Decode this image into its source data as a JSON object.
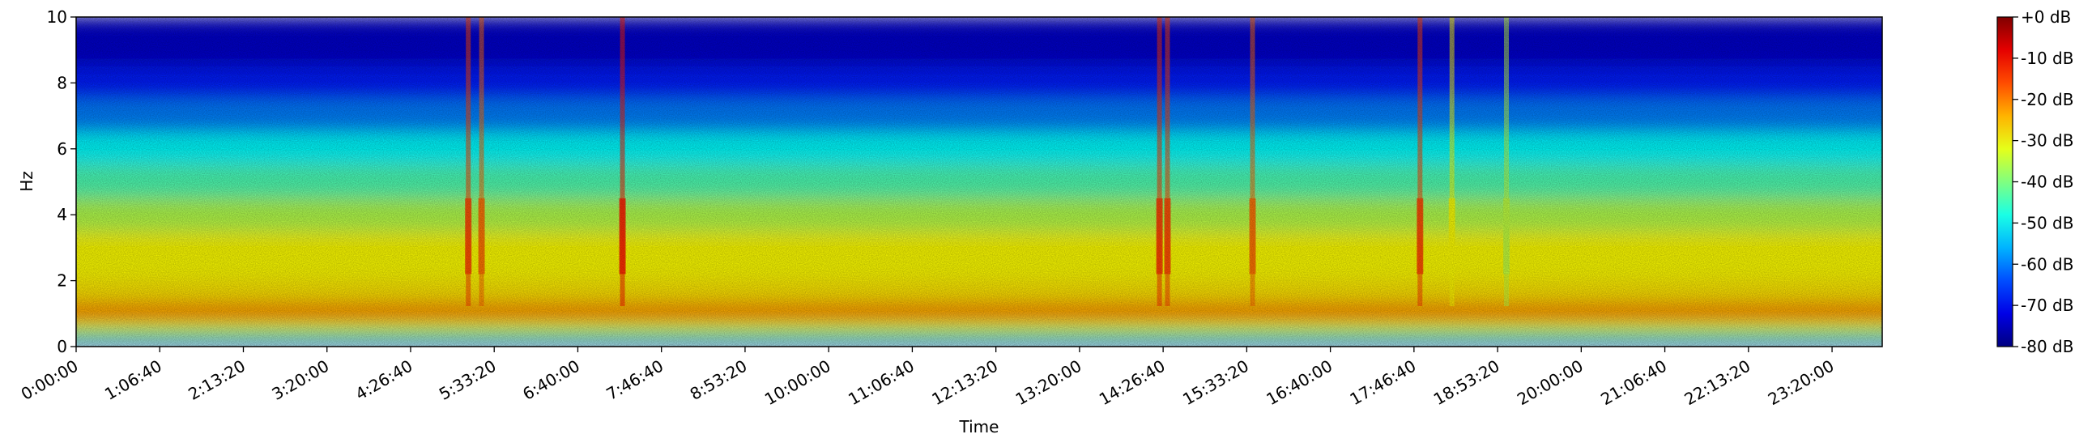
{
  "chart_data": {
    "type": "spectrogram",
    "x_label": "Time",
    "y_label": "Hz",
    "xlim": [
      0,
      86400
    ],
    "ylim": [
      0,
      10
    ],
    "xticks": [
      {
        "value": 0,
        "label": "0:00:00"
      },
      {
        "value": 4000,
        "label": "1:06:40"
      },
      {
        "value": 8000,
        "label": "2:13:20"
      },
      {
        "value": 12000,
        "label": "3:20:00"
      },
      {
        "value": 16000,
        "label": "4:26:40"
      },
      {
        "value": 20000,
        "label": "5:33:20"
      },
      {
        "value": 24000,
        "label": "6:40:00"
      },
      {
        "value": 28000,
        "label": "7:46:40"
      },
      {
        "value": 32000,
        "label": "8:53:20"
      },
      {
        "value": 36000,
        "label": "10:00:00"
      },
      {
        "value": 40000,
        "label": "11:06:40"
      },
      {
        "value": 44000,
        "label": "12:13:20"
      },
      {
        "value": 48000,
        "label": "13:20:00"
      },
      {
        "value": 52000,
        "label": "14:26:40"
      },
      {
        "value": 56000,
        "label": "15:33:20"
      },
      {
        "value": 60000,
        "label": "16:40:00"
      },
      {
        "value": 64000,
        "label": "17:46:40"
      },
      {
        "value": 68000,
        "label": "18:53:20"
      },
      {
        "value": 72000,
        "label": "20:00:00"
      },
      {
        "value": 76000,
        "label": "21:06:40"
      },
      {
        "value": 80000,
        "label": "22:13:20"
      },
      {
        "value": 84000,
        "label": "23:20:00"
      }
    ],
    "yticks": [
      0,
      2,
      4,
      6,
      8,
      10
    ],
    "profile": {
      "bins": [
        0,
        0.2,
        0.5,
        0.8,
        1.3,
        2,
        3.5,
        4.5,
        5.5,
        6.5,
        7.5,
        8.5,
        10
      ],
      "values": [
        -62,
        -42,
        -30,
        -20,
        -28,
        -30,
        -36,
        -44,
        -50,
        -60,
        -68,
        -74
      ]
    },
    "events": {
      "times": [
        18760,
        19394,
        26135,
        51825,
        52207,
        56277,
        64289,
        65816,
        68422
      ],
      "values": [
        -15,
        -18,
        -12,
        -14,
        -15,
        -18,
        -15,
        -30,
        -35
      ]
    },
    "colormap": "jet",
    "clim": [
      -80,
      0
    ],
    "cticks": [
      {
        "value": 0,
        "label": "+0 dB"
      },
      {
        "value": -10,
        "label": "-10 dB"
      },
      {
        "value": -20,
        "label": "-20 dB"
      },
      {
        "value": -30,
        "label": "-30 dB"
      },
      {
        "value": -40,
        "label": "-40 dB"
      },
      {
        "value": -50,
        "label": "-50 dB"
      },
      {
        "value": -60,
        "label": "-60 dB"
      },
      {
        "value": -70,
        "label": "-70 dB"
      },
      {
        "value": -80,
        "label": "-80 dB"
      }
    ]
  }
}
